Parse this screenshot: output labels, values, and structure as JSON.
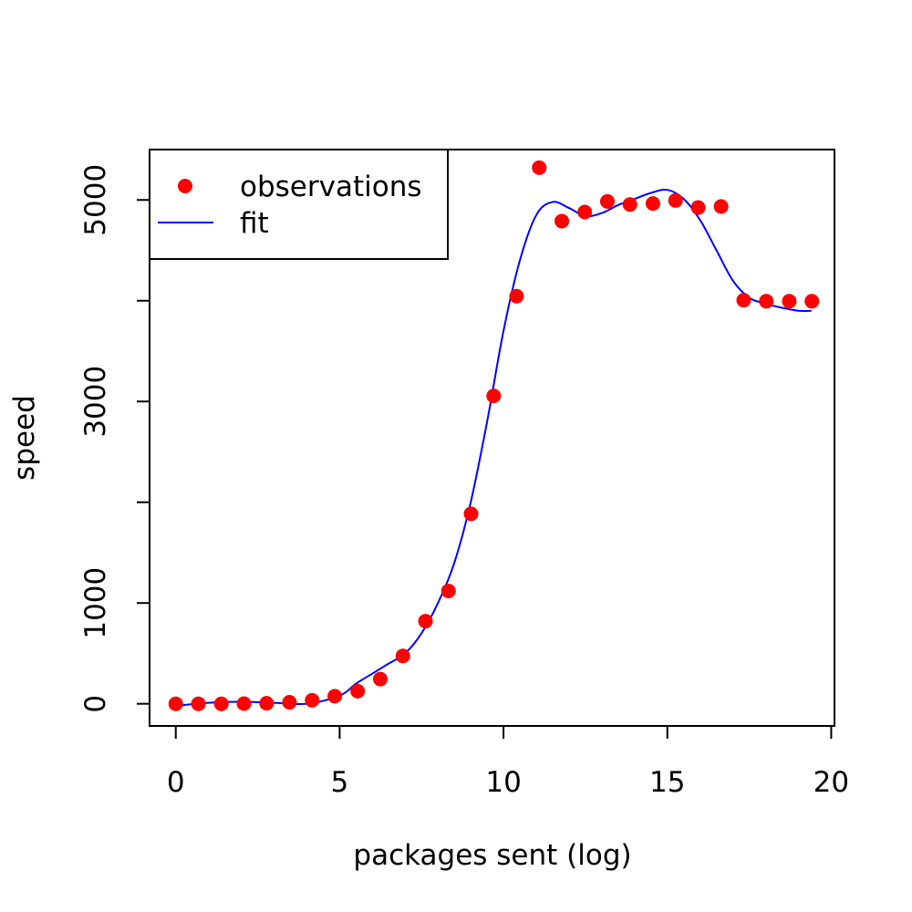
{
  "chart_data": {
    "type": "scatter",
    "title": "",
    "xlabel": "packages sent (log)",
    "ylabel": "speed",
    "xlim": [
      -0.8,
      20.1
    ],
    "ylim": [
      -220,
      5500
    ],
    "x_ticks": [
      {
        "value": 0,
        "label": "0"
      },
      {
        "value": 5,
        "label": "5"
      },
      {
        "value": 10,
        "label": "10"
      },
      {
        "value": 15,
        "label": "15"
      },
      {
        "value": 20,
        "label": "20"
      }
    ],
    "y_ticks": [
      {
        "value": 0,
        "label": "0"
      },
      {
        "value": 1000,
        "label": "1000"
      },
      {
        "value": 2000,
        "label": ""
      },
      {
        "value": 3000,
        "label": "3000"
      },
      {
        "value": 4000,
        "label": ""
      },
      {
        "value": 5000,
        "label": "5000"
      }
    ],
    "legend": {
      "position": "top-left",
      "entries": [
        {
          "label": "observations",
          "kind": "point",
          "color": "#ff0000"
        },
        {
          "label": "fit",
          "kind": "line",
          "color": "#0000ff"
        }
      ]
    },
    "series": [
      {
        "name": "observations",
        "kind": "points",
        "color": "#ff0000",
        "x": [
          0.0,
          0.69,
          1.39,
          2.08,
          2.77,
          3.47,
          4.16,
          4.85,
          5.55,
          6.24,
          6.93,
          7.62,
          8.32,
          9.01,
          9.7,
          10.4,
          11.09,
          11.78,
          12.48,
          13.17,
          13.86,
          14.56,
          15.25,
          15.94,
          16.64,
          17.33,
          18.02,
          18.72,
          19.41
        ],
        "y": [
          0,
          0,
          0,
          2,
          5,
          15,
          35,
          75,
          125,
          245,
          475,
          820,
          1120,
          1885,
          3055,
          4045,
          5320,
          4790,
          4880,
          4985,
          4955,
          4965,
          4995,
          4925,
          4935,
          4005,
          3995,
          3995,
          3995
        ]
      },
      {
        "name": "fit",
        "kind": "line",
        "color": "#0000ff",
        "x": [
          0,
          1,
          2,
          3,
          4,
          5,
          5.5,
          6,
          6.5,
          7,
          7.5,
          8,
          8.5,
          9,
          9.5,
          10,
          10.5,
          11,
          11.5,
          12,
          12.5,
          13,
          13.5,
          14,
          14.5,
          15,
          15.5,
          16,
          16.5,
          17,
          17.5,
          18,
          18.5,
          19,
          19.4
        ],
        "y": [
          -20,
          10,
          20,
          10,
          0,
          80,
          200,
          300,
          400,
          500,
          700,
          1000,
          1400,
          2000,
          2800,
          3700,
          4400,
          4850,
          4980,
          4920,
          4840,
          4870,
          4950,
          5010,
          5070,
          5100,
          5010,
          4800,
          4500,
          4200,
          4030,
          3970,
          3930,
          3900,
          3900
        ]
      }
    ]
  }
}
